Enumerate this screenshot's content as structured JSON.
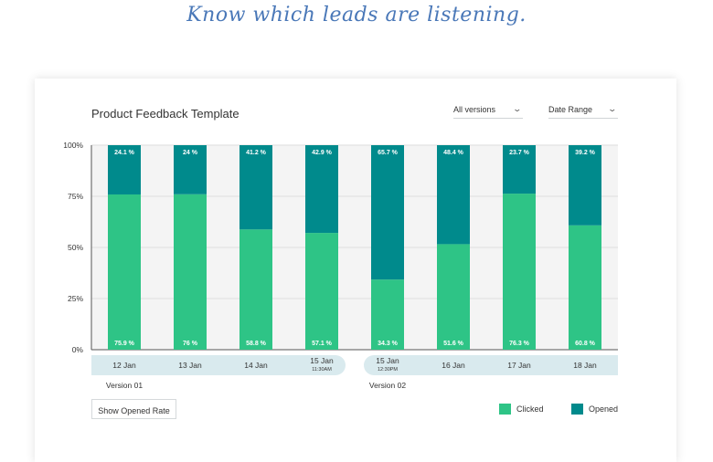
{
  "tagline": "Know which leads are listening.",
  "card": {
    "title": "Product Feedback Template",
    "versions_dropdown": "All versions",
    "date_dropdown": "Date Range",
    "show_opened_button": "Show Opened Rate"
  },
  "colors": {
    "clicked": "#2ec486",
    "opened": "#008a8c",
    "plot_background": "#f4f4f4",
    "axis_band": "#d9eaee"
  },
  "chart_data": {
    "type": "bar",
    "stacked": true,
    "categories": [
      "12 Jan",
      "13 Jan",
      "14 Jan",
      "15 Jan",
      "15 Jan",
      "16 Jan",
      "17 Jan",
      "18 Jan"
    ],
    "category_sublabels": [
      "",
      "",
      "",
      "11:30AM",
      "12:30PM",
      "",
      "",
      ""
    ],
    "series": [
      {
        "name": "Clicked",
        "values": [
          75.9,
          76,
          58.8,
          57.1,
          34.3,
          51.6,
          76.3,
          60.8
        ],
        "labels": [
          "75.9 %",
          "76 %",
          "58.8 %",
          "57.1 %",
          "34.3 %",
          "51.6 %",
          "76.3 %",
          "60.8 %"
        ]
      },
      {
        "name": "Opened",
        "values": [
          24.1,
          24,
          41.2,
          42.9,
          65.7,
          48.4,
          23.7,
          39.2
        ],
        "labels": [
          "24.1 %",
          "24 %",
          "41.2 %",
          "42.9 %",
          "65.7 %",
          "48.4 %",
          "23.7 %",
          "39.2 %"
        ]
      }
    ],
    "yticks": [
      "100%",
      "75%",
      "50%",
      "25%",
      "0%"
    ],
    "ylim": [
      0,
      100
    ],
    "groups": [
      {
        "label": "Version 01",
        "start": 0,
        "end": 3
      },
      {
        "label": "Version 02",
        "start": 4,
        "end": 7
      }
    ],
    "grid": true,
    "legend": "bottom-right"
  }
}
